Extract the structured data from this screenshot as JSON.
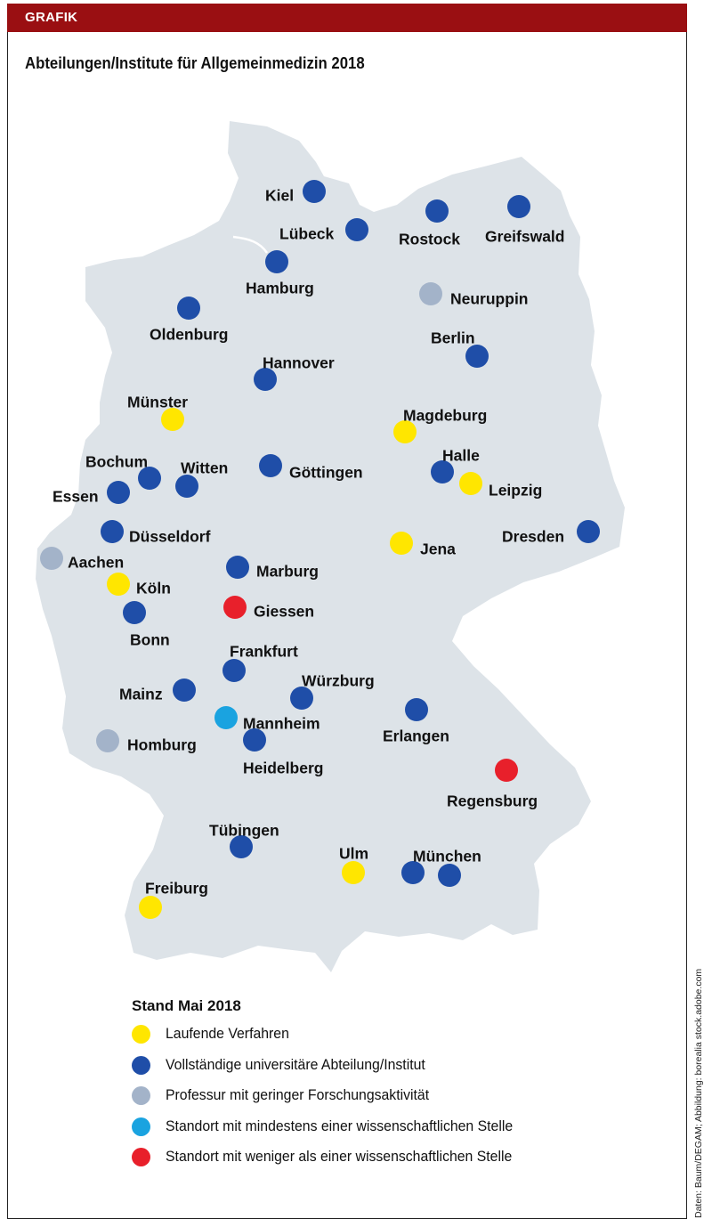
{
  "header": {
    "label": "GRAFIK"
  },
  "title": "Abteilungen/Institute für Allgemeinmedizin 2018",
  "colors": {
    "header_bg": "#9a0f12",
    "land": "#dde3e8",
    "laufend": "#ffe600",
    "vollstaendig": "#1f4ea8",
    "professur": "#a3b3c9",
    "mindestens": "#1aa3e0",
    "weniger": "#e8202b"
  },
  "cities": [
    {
      "name": "Kiel",
      "status": "vollstaendig"
    },
    {
      "name": "Lübeck",
      "status": "vollstaendig"
    },
    {
      "name": "Rostock",
      "status": "vollstaendig"
    },
    {
      "name": "Greifswald",
      "status": "vollstaendig"
    },
    {
      "name": "Hamburg",
      "status": "vollstaendig"
    },
    {
      "name": "Neuruppin",
      "status": "professur"
    },
    {
      "name": "Oldenburg",
      "status": "vollstaendig"
    },
    {
      "name": "Berlin",
      "status": "vollstaendig"
    },
    {
      "name": "Hannover",
      "status": "vollstaendig"
    },
    {
      "name": "Münster",
      "status": "laufend"
    },
    {
      "name": "Magdeburg",
      "status": "laufend"
    },
    {
      "name": "Bochum",
      "status": "vollstaendig"
    },
    {
      "name": "Witten",
      "status": "vollstaendig"
    },
    {
      "name": "Göttingen",
      "status": "vollstaendig"
    },
    {
      "name": "Halle",
      "status": "vollstaendig"
    },
    {
      "name": "Essen",
      "status": "vollstaendig"
    },
    {
      "name": "Leipzig",
      "status": "laufend"
    },
    {
      "name": "Düsseldorf",
      "status": "vollstaendig"
    },
    {
      "name": "Dresden",
      "status": "vollstaendig"
    },
    {
      "name": "Jena",
      "status": "laufend"
    },
    {
      "name": "Aachen",
      "status": "professur"
    },
    {
      "name": "Marburg",
      "status": "vollstaendig"
    },
    {
      "name": "Köln",
      "status": "laufend"
    },
    {
      "name": "Giessen",
      "status": "weniger"
    },
    {
      "name": "Bonn",
      "status": "vollstaendig"
    },
    {
      "name": "Frankfurt",
      "status": "vollstaendig"
    },
    {
      "name": "Mainz",
      "status": "vollstaendig"
    },
    {
      "name": "Würzburg",
      "status": "vollstaendig"
    },
    {
      "name": "Mannheim",
      "status": "mindestens"
    },
    {
      "name": "Erlangen",
      "status": "vollstaendig"
    },
    {
      "name": "Homburg",
      "status": "professur"
    },
    {
      "name": "Heidelberg",
      "status": "vollstaendig"
    },
    {
      "name": "Regensburg",
      "status": "weniger"
    },
    {
      "name": "Tübingen",
      "status": "vollstaendig"
    },
    {
      "name": "Ulm",
      "status": "laufend"
    },
    {
      "name": "München",
      "status": "vollstaendig"
    },
    {
      "name": "München",
      "status": "vollstaendig"
    },
    {
      "name": "Freiburg",
      "status": "laufend"
    }
  ],
  "legend": {
    "title": "Stand Mai 2018",
    "items": [
      {
        "status": "laufend",
        "label": "Laufende Verfahren"
      },
      {
        "status": "vollstaendig",
        "label": "Vollständige universitäre Abteilung/Institut"
      },
      {
        "status": "professur",
        "label": "Professur mit geringer Forschungsaktivität"
      },
      {
        "status": "mindestens",
        "label": "Standort mit mindestens einer wissenschaftlichen Stelle"
      },
      {
        "status": "weniger",
        "label": "Standort mit weniger als einer wissenschaftlichen Stelle"
      }
    ]
  },
  "credit": "Daten: Baum/DEGAM; Abbildung: borealia stock.adobe.com"
}
